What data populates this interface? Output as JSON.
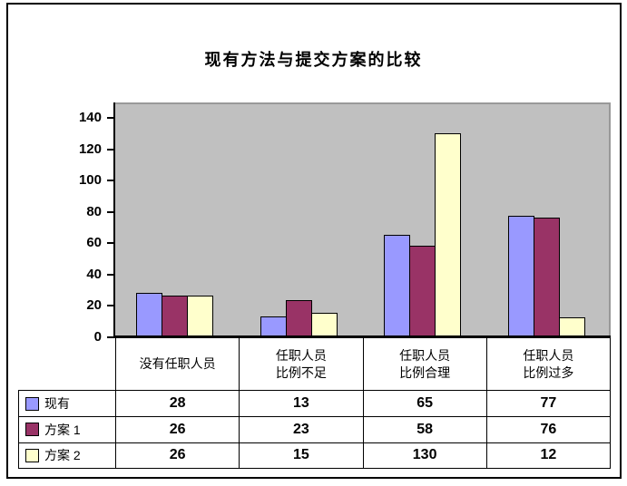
{
  "chart_data": {
    "type": "bar",
    "title": "现有方法与提交方案的比较",
    "categories": [
      "没有任职人员",
      "任职人员\n比例不足",
      "任职人员\n比例合理",
      "任职人员\n比例过多"
    ],
    "series": [
      {
        "name": "现有",
        "color": "#9999FF",
        "values": [
          28,
          13,
          65,
          77
        ]
      },
      {
        "name": "方案 1",
        "color": "#993366",
        "values": [
          26,
          23,
          58,
          76
        ]
      },
      {
        "name": "方案 2",
        "color": "#FFFFCC",
        "values": [
          26,
          15,
          130,
          12
        ]
      }
    ],
    "xlabel": "",
    "ylabel": "",
    "ylim": [
      0,
      150
    ],
    "y_ticks": [
      0,
      20,
      40,
      60,
      80,
      100,
      120,
      140
    ],
    "grid": false,
    "plot_bg": "#C0C0C0",
    "bar_border_color": "#000000",
    "legend_position": "data-table-left",
    "data_table": true
  }
}
